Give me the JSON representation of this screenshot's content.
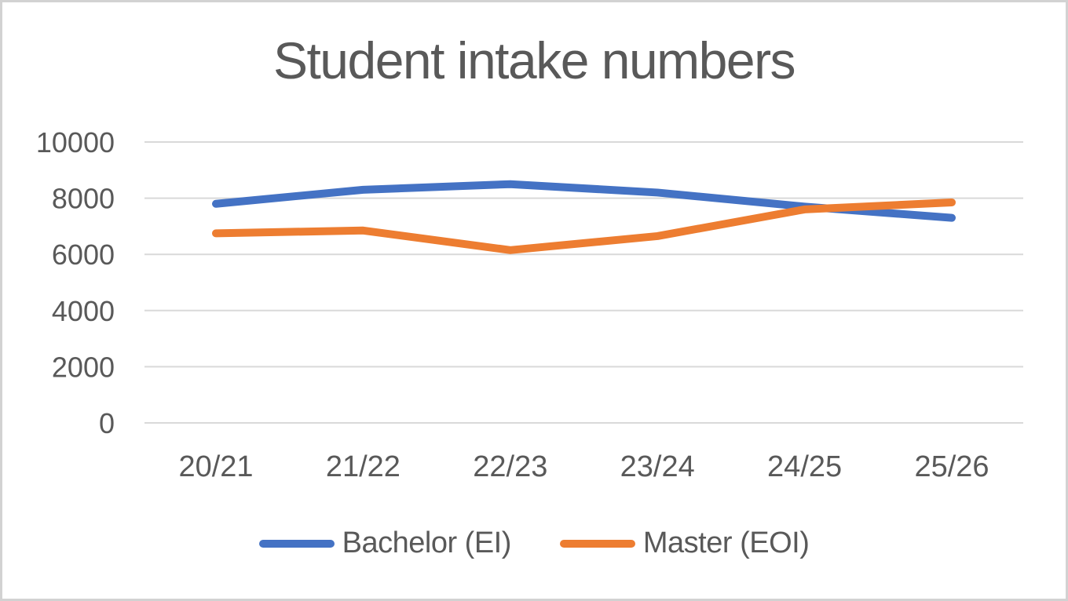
{
  "chart_data": {
    "type": "line",
    "title": "Student intake numbers",
    "categories": [
      "20/21",
      "21/22",
      "22/23",
      "23/24",
      "24/25",
      "25/26"
    ],
    "series": [
      {
        "name": "Bachelor (EI)",
        "color": "#4472C4",
        "values": [
          7800,
          8300,
          8500,
          8200,
          7700,
          7300
        ]
      },
      {
        "name": "Master (EOI)",
        "color": "#ED7D31",
        "values": [
          6750,
          6850,
          6150,
          6650,
          7600,
          7850
        ]
      }
    ],
    "y_axis": {
      "min": 0,
      "max": 10000,
      "step": 2000,
      "ticks": [
        "0",
        "2000",
        "4000",
        "6000",
        "8000",
        "10000"
      ]
    },
    "x_axis_label": "",
    "y_axis_label": "",
    "grid": "horizontal",
    "legend_position": "bottom",
    "colors": {
      "text": "#595959",
      "gridline": "#D9D9D9",
      "background": "#FFFFFF",
      "frame_border": "#D2D2D2"
    }
  }
}
